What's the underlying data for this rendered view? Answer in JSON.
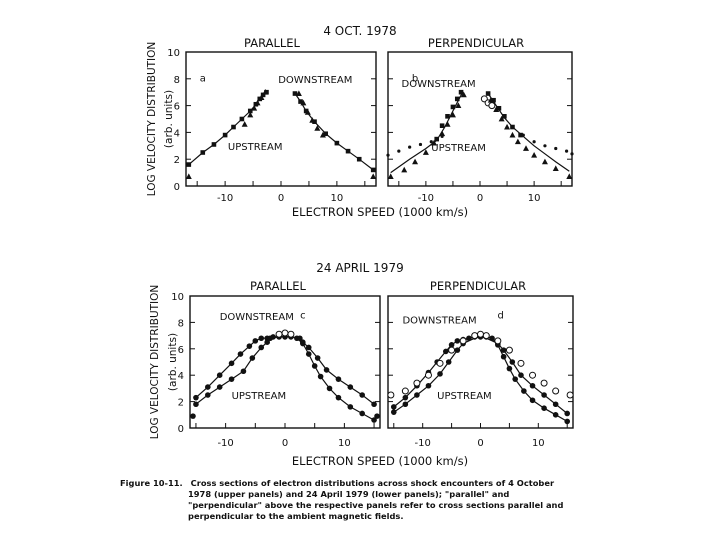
{
  "chart_data": [
    {
      "type": "scatter",
      "title": "4 OCT. 1978",
      "ylabel": "LOG VELOCITY DISTRIBUTION",
      "ylabel_units": "(arb. units)",
      "xlabel": "ELECTRON SPEED (1000 km/s)",
      "xlim": [
        -17,
        17
      ],
      "ylim": [
        0,
        10
      ],
      "xticks": [
        "-10",
        "0",
        "10"
      ],
      "yticks": [
        "0",
        "2",
        "4",
        "6",
        "8",
        "10"
      ],
      "panels": [
        {
          "header": "PARALLEL",
          "letter": "a",
          "labels": [
            {
              "text": "DOWNSTREAM",
              "x": -0.5,
              "y": 7.7
            },
            {
              "text": "UPSTREAM",
              "x": -9.5,
              "y": 2.7
            }
          ],
          "series": [
            {
              "marker": "square",
              "x": [
                -16.5,
                -14,
                -12,
                -10,
                -8.5,
                -7,
                -5.5,
                -4.5,
                -3.8,
                -3.2,
                -2.6
              ],
              "y": [
                1.6,
                2.5,
                3.1,
                3.8,
                4.4,
                5.0,
                5.6,
                6.1,
                6.5,
                6.8,
                7.0
              ]
            },
            {
              "marker": "triangle",
              "x": [
                -6.5,
                -5.5,
                -4.8,
                -4.2,
                -3.5,
                -2.8
              ],
              "y": [
                4.6,
                5.3,
                5.8,
                6.2,
                6.6,
                7.0
              ]
            },
            {
              "marker": "square",
              "x": [
                2.5,
                3.5,
                4.5,
                6,
                8,
                10,
                12,
                14,
                16.5
              ],
              "y": [
                6.9,
                6.3,
                5.6,
                4.8,
                3.9,
                3.2,
                2.6,
                2.0,
                1.2
              ]
            },
            {
              "marker": "triangle",
              "x": [
                3.2,
                4.0,
                4.8,
                5.6,
                6.5,
                7.5
              ],
              "y": [
                6.9,
                6.2,
                5.5,
                4.9,
                4.3,
                3.8
              ]
            },
            {
              "marker": "triangle",
              "x": [
                -16.5,
                16.5
              ],
              "y": [
                0.7,
                0.7
              ]
            }
          ],
          "curves": [
            {
              "x": [
                -16.5,
                -14,
                -12,
                -10,
                -8.5,
                -7,
                -5.5,
                -4.5,
                -3.8,
                -3.2,
                -2.6
              ],
              "y": [
                1.6,
                2.5,
                3.1,
                3.8,
                4.4,
                5.0,
                5.6,
                6.1,
                6.5,
                6.8,
                7.0
              ]
            },
            {
              "x": [
                2.5,
                3.5,
                4.5,
                6,
                8,
                10,
                12,
                14,
                16.5
              ],
              "y": [
                6.9,
                6.3,
                5.6,
                4.8,
                3.9,
                3.2,
                2.6,
                2.0,
                1.2
              ]
            }
          ]
        },
        {
          "header": "PERPENDICULAR",
          "letter": "b",
          "labels": [
            {
              "text": "DOWNSTREAM",
              "x": -14.5,
              "y": 7.4
            },
            {
              "text": "UPSTREAM",
              "x": -9,
              "y": 2.6
            }
          ],
          "series": [
            {
              "marker": "square",
              "x": [
                -8,
                -7,
                -6,
                -5,
                -4.2,
                -3.5
              ],
              "y": [
                3.5,
                4.5,
                5.2,
                5.9,
                6.5,
                7.0
              ]
            },
            {
              "marker": "triangle",
              "x": [
                -16.5,
                -14,
                -12,
                -10,
                -8.5,
                -7,
                -6,
                -5,
                -4,
                -3
              ],
              "y": [
                0.7,
                1.2,
                1.8,
                2.5,
                3.2,
                3.9,
                4.6,
                5.3,
                6.0,
                6.8
              ]
            },
            {
              "marker": "dot",
              "x": [
                -17,
                -15,
                -13,
                -11,
                -9,
                -7
              ],
              "y": [
                2.3,
                2.6,
                2.9,
                3.1,
                3.3,
                3.7
              ]
            },
            {
              "marker": "circle",
              "x": [
                0.8,
                1.5,
                2.2
              ],
              "y": [
                6.5,
                6.2,
                6.0
              ]
            },
            {
              "marker": "square",
              "x": [
                1.5,
                2.5,
                3.5,
                4.5,
                6,
                7.5
              ],
              "y": [
                6.9,
                6.4,
                5.8,
                5.2,
                4.4,
                3.8
              ]
            },
            {
              "marker": "triangle",
              "x": [
                2,
                3,
                4,
                5,
                6,
                7,
                8.5,
                10,
                12,
                14,
                16.5
              ],
              "y": [
                6.4,
                5.7,
                5.0,
                4.4,
                3.8,
                3.3,
                2.8,
                2.3,
                1.8,
                1.3,
                0.7
              ]
            },
            {
              "marker": "dot",
              "x": [
                8,
                10,
                12,
                14,
                16,
                17
              ],
              "y": [
                3.8,
                3.3,
                3.0,
                2.8,
                2.6,
                2.4
              ]
            }
          ],
          "curves": [
            {
              "x": [
                -16.5,
                -13,
                -10,
                -8,
                -6.5,
                -5,
                -4,
                -3.2
              ],
              "y": [
                1.0,
                2.0,
                2.8,
                3.4,
                4.4,
                5.6,
                6.4,
                7.0
              ]
            },
            {
              "x": [
                1.5,
                3,
                4.5,
                6,
                8,
                10,
                12,
                14,
                16.5
              ],
              "y": [
                6.9,
                6.0,
                5.1,
                4.4,
                3.7,
                3.0,
                2.4,
                1.8,
                1.1
              ]
            }
          ]
        }
      ]
    },
    {
      "type": "scatter",
      "title": "24 APRIL 1979",
      "ylabel": "LOG VELOCITY DISTRIBUTION",
      "ylabel_units": "(arb. units)",
      "xlabel": "ELECTRON SPEED (1000 km/s)",
      "xlim": [
        -16,
        16
      ],
      "ylim": [
        0,
        10
      ],
      "xticks": [
        "-10",
        "0",
        "10"
      ],
      "yticks": [
        "0",
        "2",
        "4",
        "6",
        "8",
        "10"
      ],
      "panels": [
        {
          "header": "PARALLEL",
          "letter": "c",
          "labels": [
            {
              "text": "DOWNSTREAM",
              "x": -11,
              "y": 8.2
            },
            {
              "text": "UPSTREAM",
              "x": -9,
              "y": 2.2
            }
          ],
          "series": [
            {
              "marker": "dot",
              "x": [
                -15,
                -13,
                -11,
                -9,
                -7.5,
                -6,
                -5,
                -4,
                -3,
                -2,
                -1,
                0,
                1,
                2,
                3,
                4,
                5,
                6,
                7.5,
                9,
                11,
                13,
                15
              ],
              "y": [
                2.3,
                3.1,
                4.0,
                4.9,
                5.6,
                6.2,
                6.6,
                6.8,
                6.8,
                6.9,
                6.9,
                6.9,
                6.9,
                6.8,
                6.4,
                5.6,
                4.7,
                3.9,
                3.0,
                2.3,
                1.6,
                1.1,
                0.6
              ]
            },
            {
              "marker": "dot",
              "x": [
                -15,
                -13,
                -11,
                -9,
                -7,
                -5.5,
                -4,
                -3,
                -2.5,
                2.5,
                3,
                4,
                5.5,
                7,
                9,
                11,
                13,
                15
              ],
              "y": [
                1.8,
                2.5,
                3.1,
                3.7,
                4.3,
                5.3,
                6.1,
                6.5,
                6.8,
                6.8,
                6.5,
                6.1,
                5.3,
                4.4,
                3.7,
                3.1,
                2.5,
                1.8
              ]
            },
            {
              "marker": "circle",
              "x": [
                -1,
                0,
                1
              ],
              "y": [
                7.1,
                7.2,
                7.1
              ]
            },
            {
              "marker": "dot",
              "x": [
                -15.5,
                15.5
              ],
              "y": [
                0.9,
                0.9
              ]
            }
          ],
          "curves": [
            {
              "x": [
                -15,
                -13,
                -11,
                -9,
                -7.5,
                -6,
                -5,
                -4,
                -3,
                -2,
                -1,
                0,
                1,
                2,
                3,
                4,
                5,
                6,
                7.5,
                9,
                11,
                13,
                15
              ],
              "y": [
                2.3,
                3.1,
                4.0,
                4.9,
                5.6,
                6.2,
                6.6,
                6.8,
                6.8,
                6.9,
                6.9,
                6.9,
                6.9,
                6.8,
                6.4,
                5.6,
                4.7,
                3.9,
                3.0,
                2.3,
                1.6,
                1.1,
                0.6
              ]
            },
            {
              "x": [
                -15,
                -13,
                -11,
                -9,
                -7,
                -5.5,
                -4,
                -3,
                -2.5,
                -1,
                0,
                1,
                2.5,
                3,
                4,
                5.5,
                7,
                9,
                11,
                13,
                15
              ],
              "y": [
                1.8,
                2.5,
                3.1,
                3.7,
                4.3,
                5.3,
                6.1,
                6.5,
                6.8,
                6.9,
                6.9,
                6.9,
                6.8,
                6.5,
                6.1,
                5.3,
                4.4,
                3.7,
                3.1,
                2.5,
                1.8
              ]
            }
          ]
        },
        {
          "header": "PERPENDICULAR",
          "letter": "d",
          "labels": [
            {
              "text": "DOWNSTREAM",
              "x": -13.5,
              "y": 7.9
            },
            {
              "text": "UPSTREAM",
              "x": -7.5,
              "y": 2.2
            }
          ],
          "series": [
            {
              "marker": "dot",
              "x": [
                -15,
                -13,
                -11,
                -9,
                -7.5,
                -6,
                -5,
                -4,
                -3,
                -2,
                -1,
                0,
                1,
                2,
                3,
                4,
                5,
                6,
                7.5,
                9,
                11,
                13,
                15
              ],
              "y": [
                1.6,
                2.3,
                3.2,
                4.2,
                5.0,
                5.8,
                6.3,
                6.6,
                6.7,
                6.8,
                6.9,
                6.9,
                6.9,
                6.8,
                6.3,
                5.4,
                4.5,
                3.7,
                2.8,
                2.1,
                1.5,
                1.0,
                0.5
              ]
            },
            {
              "marker": "dot",
              "x": [
                -15,
                -13,
                -11,
                -9,
                -7,
                -5.5,
                -4,
                -3,
                3,
                4,
                5.5,
                7,
                9,
                11,
                13,
                15
              ],
              "y": [
                1.2,
                1.8,
                2.5,
                3.2,
                4.1,
                5.0,
                5.9,
                6.4,
                6.4,
                5.9,
                5.0,
                4.0,
                3.2,
                2.5,
                1.8,
                1.1
              ]
            },
            {
              "marker": "circle",
              "x": [
                -15.5,
                -13,
                -11,
                -9,
                -7,
                -5,
                -3,
                -1,
                0,
                1,
                3,
                5,
                7,
                9,
                11,
                13,
                15.5
              ],
              "y": [
                2.5,
                2.8,
                3.4,
                4.0,
                4.9,
                5.9,
                6.6,
                7.0,
                7.1,
                7.0,
                6.6,
                5.9,
                4.9,
                4.0,
                3.4,
                2.8,
                2.5
              ]
            }
          ],
          "curves": [
            {
              "x": [
                -15,
                -13,
                -11,
                -9,
                -7.5,
                -6,
                -5,
                -4,
                -3,
                -2,
                -1,
                0,
                1,
                2,
                3,
                4,
                5,
                6,
                7.5,
                9,
                11,
                13,
                15
              ],
              "y": [
                1.6,
                2.3,
                3.2,
                4.2,
                5.0,
                5.8,
                6.3,
                6.6,
                6.7,
                6.8,
                6.9,
                6.9,
                6.9,
                6.8,
                6.3,
                5.4,
                4.5,
                3.7,
                2.8,
                2.1,
                1.5,
                1.0,
                0.5
              ]
            },
            {
              "x": [
                -15,
                -13,
                -11,
                -9,
                -7,
                -5.5,
                -4,
                -3,
                -1,
                0,
                1,
                3,
                4,
                5.5,
                7,
                9,
                11,
                13,
                15
              ],
              "y": [
                1.2,
                1.8,
                2.5,
                3.2,
                4.1,
                5.0,
                5.9,
                6.4,
                6.8,
                6.9,
                6.8,
                6.4,
                5.9,
                5.0,
                4.0,
                3.2,
                2.5,
                1.8,
                1.1
              ]
            }
          ]
        }
      ]
    }
  ],
  "caption": {
    "label": "Figure 10-11.",
    "lines": [
      "Cross sections of electron distributions across shock encounters of 4 October",
      "1978 (upper panels) and 24 April 1979 (lower panels); \"parallel\" and",
      "\"perpendicular\" above the respective panels refer to cross sections parallel and",
      "perpendicular to the ambient magnetic fields."
    ]
  }
}
